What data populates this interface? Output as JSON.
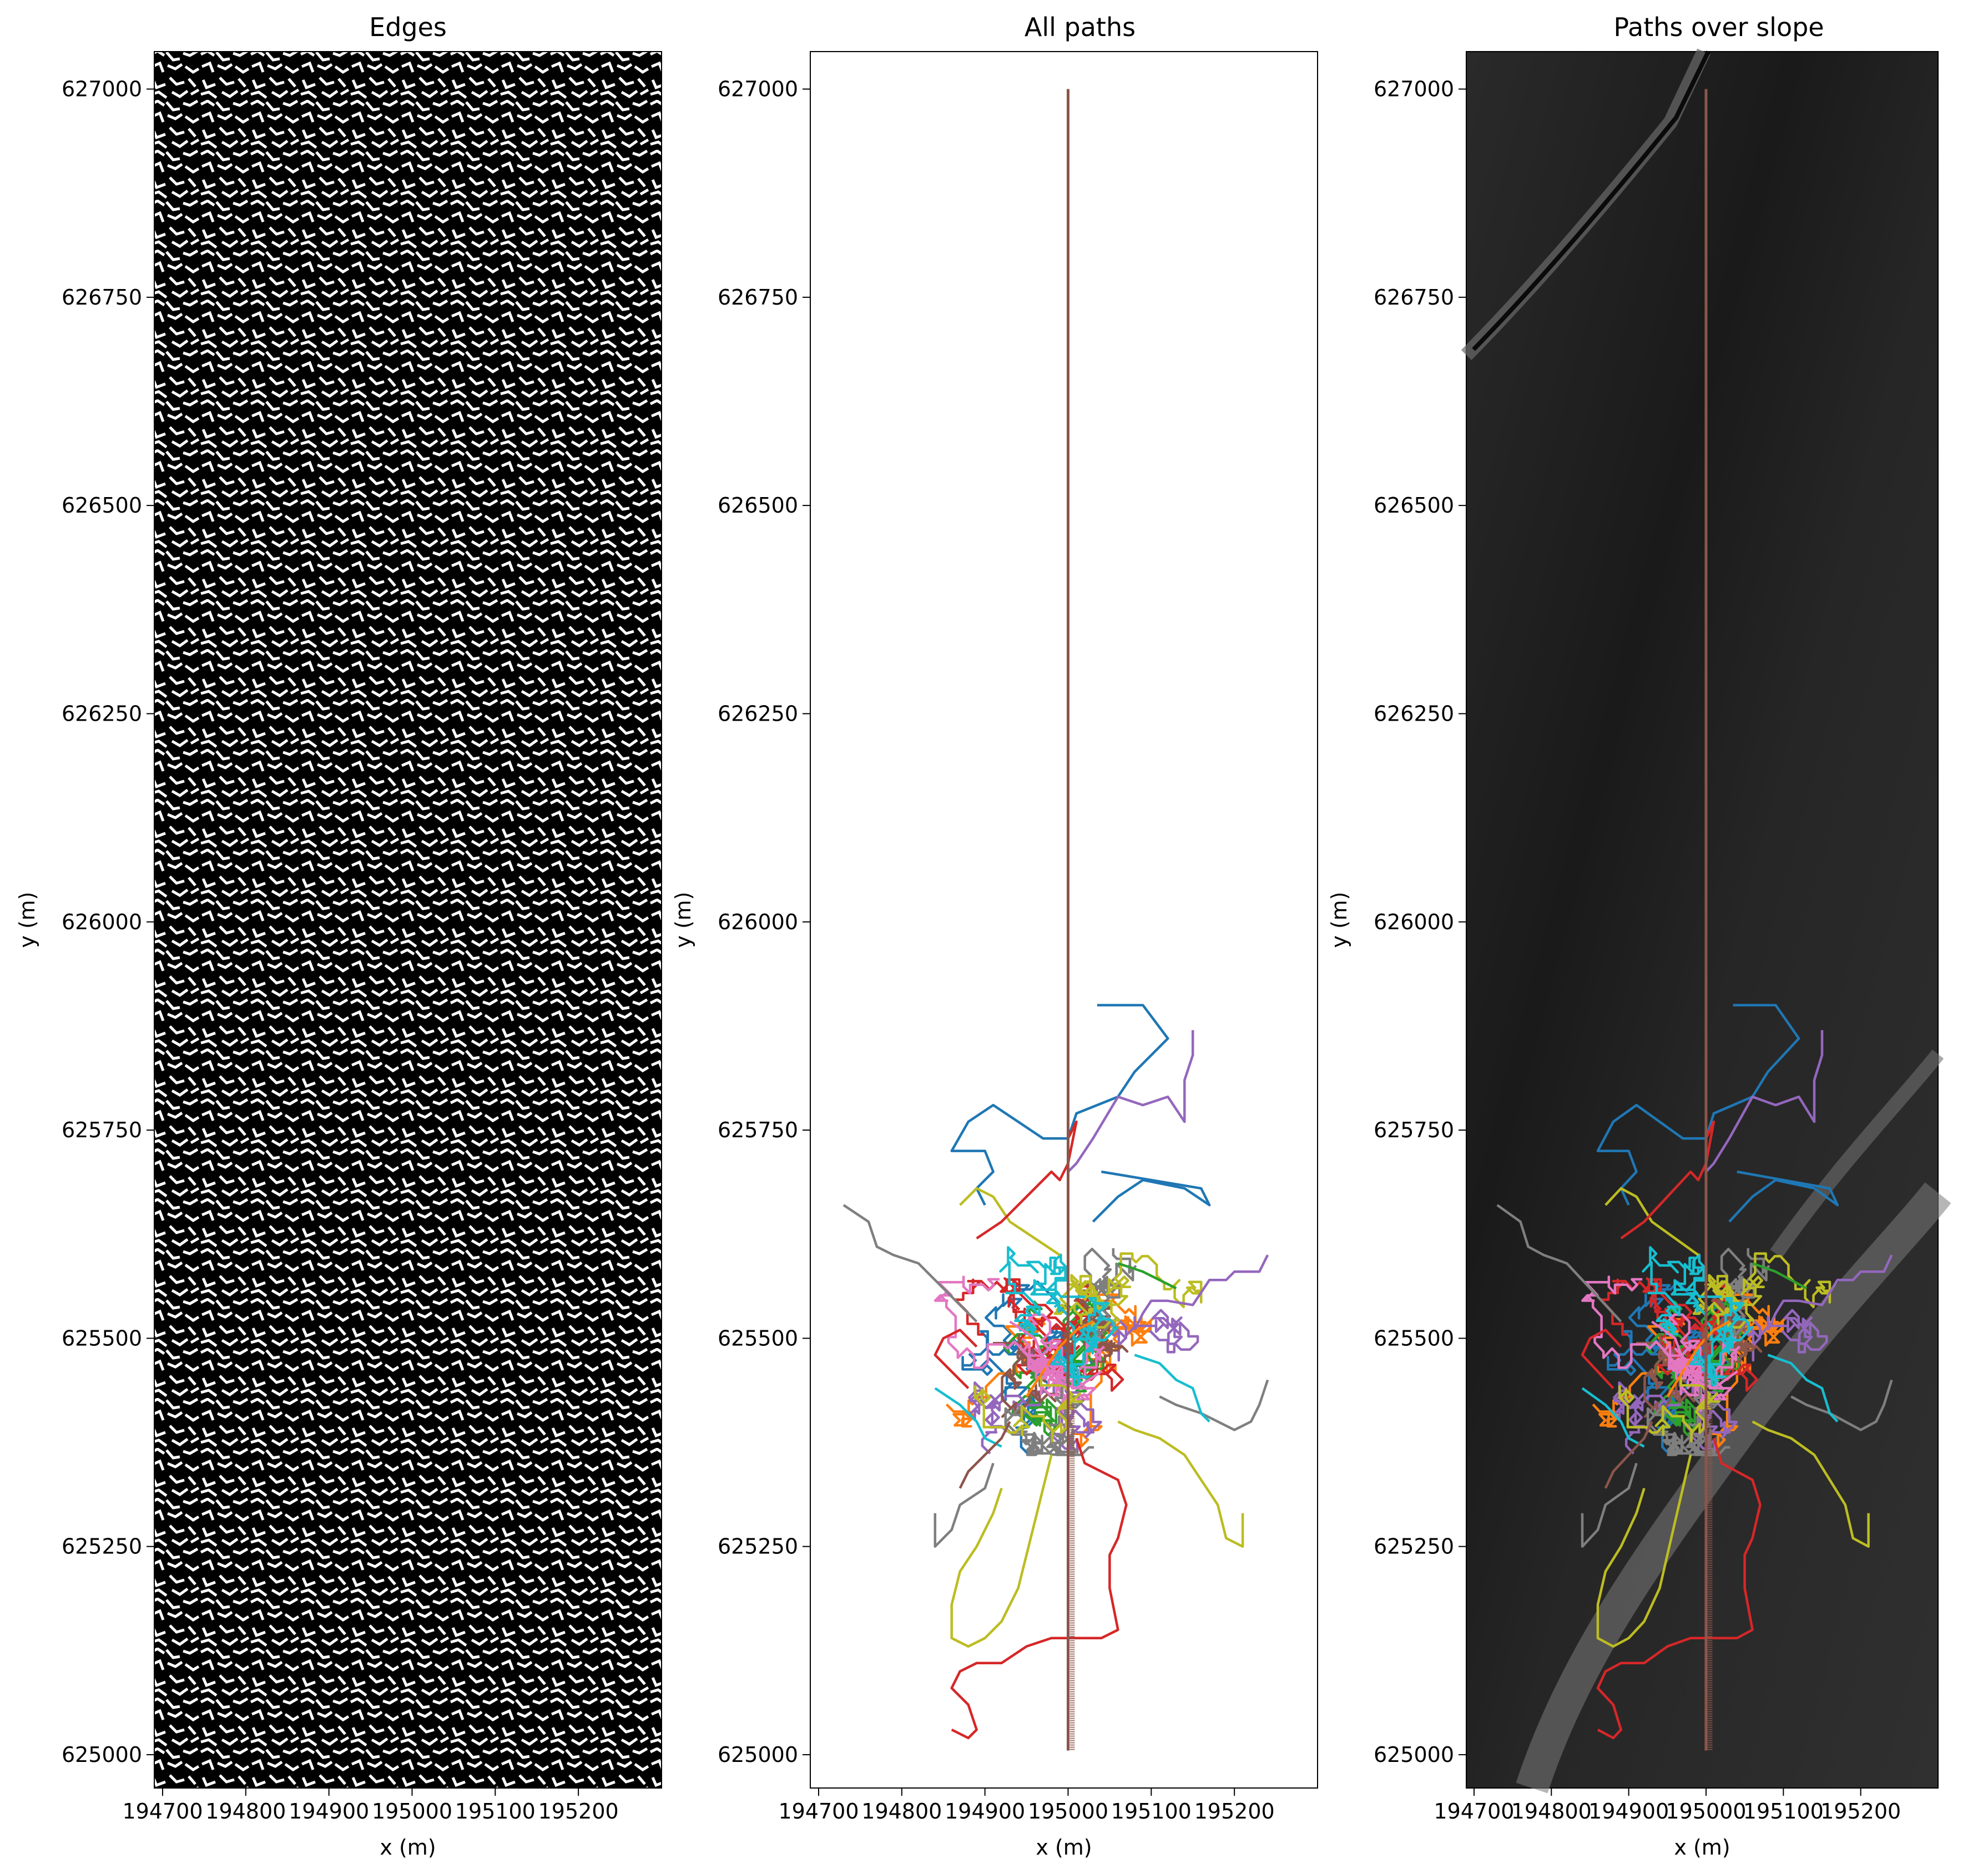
{
  "chart_data": [
    {
      "type": "heatmap",
      "panel": "edges",
      "title": "Edges",
      "xlabel": "x (m)",
      "ylabel": "y (m)",
      "xlim": [
        194690,
        195300
      ],
      "ylim": [
        624960,
        627045
      ],
      "xticks": [
        194700,
        194800,
        194900,
        195000,
        195100,
        195200
      ],
      "yticks": [
        625000,
        625250,
        625500,
        625750,
        626000,
        626250,
        626500,
        626750,
        627000
      ],
      "colormap": "binary edge map (white edges on black)"
    },
    {
      "type": "line",
      "panel": "all-paths",
      "title": "All paths",
      "xlabel": "x (m)",
      "ylabel": "y (m)",
      "xlim": [
        194690,
        195300
      ],
      "ylim": [
        624960,
        627045
      ],
      "xticks": [
        194700,
        194800,
        194900,
        195000,
        195100,
        195200
      ],
      "yticks": [
        625000,
        625250,
        625500,
        625750,
        626000,
        626250,
        626500,
        626750,
        627000
      ],
      "series_colors": [
        "#1f77b4",
        "#ff7f0e",
        "#2ca02c",
        "#d62728",
        "#9467bd",
        "#8c564b",
        "#e377c2",
        "#7f7f7f",
        "#bcbd22",
        "#17becf"
      ],
      "cluster_center": [
        194990,
        625480
      ],
      "vertical_path": {
        "color": "#8c564b",
        "x": 195000,
        "y_start": 627000,
        "y_end": 625005
      },
      "paths": [
        {
          "color": "#1f77b4",
          "points": [
            [
              195035,
              625900
            ],
            [
              195090,
              625900
            ],
            [
              195120,
              625860
            ],
            [
              195080,
              625820
            ],
            [
              195060,
              625790
            ],
            [
              195010,
              625770
            ],
            [
              195000,
              625740
            ],
            [
              194990,
              625740
            ],
            [
              194970,
              625740
            ],
            [
              194910,
              625780
            ],
            [
              194880,
              625760
            ],
            [
              194860,
              625725
            ],
            [
              194900,
              625725
            ],
            [
              194910,
              625700
            ],
            [
              194890,
              625680
            ],
            [
              194900,
              625660
            ]
          ]
        },
        {
          "color": "#1f77b4",
          "points": [
            [
              195040,
              625700
            ],
            [
              195100,
              625690
            ],
            [
              195160,
              625680
            ],
            [
              195170,
              625660
            ],
            [
              195140,
              625680
            ],
            [
              195090,
              625690
            ],
            [
              195060,
              625670
            ],
            [
              195030,
              625640
            ]
          ]
        },
        {
          "color": "#9467bd",
          "points": [
            [
              195150,
              625870
            ],
            [
              195150,
              625840
            ],
            [
              195140,
              625810
            ],
            [
              195140,
              625760
            ],
            [
              195120,
              625790
            ],
            [
              195090,
              625780
            ],
            [
              195060,
              625790
            ],
            [
              195030,
              625740
            ],
            [
              195010,
              625710
            ],
            [
              195000,
              625700
            ]
          ]
        },
        {
          "color": "#9467bd",
          "points": [
            [
              195240,
              625600
            ],
            [
              195230,
              625580
            ],
            [
              195200,
              625580
            ],
            [
              195190,
              625570
            ],
            [
              195170,
              625570
            ],
            [
              195150,
              625540
            ],
            [
              195120,
              625545
            ],
            [
              195100,
              625545
            ],
            [
              195090,
              625530
            ],
            [
              195080,
              625510
            ]
          ]
        },
        {
          "color": "#7f7f7f",
          "points": [
            [
              194730,
              625660
            ],
            [
              194760,
              625640
            ],
            [
              194770,
              625610
            ],
            [
              194790,
              625600
            ],
            [
              194820,
              625590
            ],
            [
              194830,
              625580
            ],
            [
              194850,
              625560
            ],
            [
              194870,
              625540
            ],
            [
              194890,
              625520
            ]
          ]
        },
        {
          "color": "#7f7f7f",
          "points": [
            [
              195240,
              625450
            ],
            [
              195230,
              625420
            ],
            [
              195220,
              625400
            ],
            [
              195200,
              625390
            ],
            [
              195180,
              625400
            ],
            [
              195160,
              625410
            ],
            [
              195130,
              625420
            ],
            [
              195110,
              625430
            ]
          ]
        },
        {
          "color": "#7f7f7f",
          "points": [
            [
              194840,
              625290
            ],
            [
              194840,
              625250
            ],
            [
              194860,
              625270
            ],
            [
              194870,
              625300
            ],
            [
              194900,
              625320
            ],
            [
              194910,
              625350
            ]
          ]
        },
        {
          "color": "#bcbd22",
          "points": [
            [
              195210,
              625290
            ],
            [
              195210,
              625250
            ],
            [
              195190,
              625260
            ],
            [
              195180,
              625300
            ],
            [
              195160,
              625330
            ],
            [
              195140,
              625360
            ],
            [
              195110,
              625380
            ],
            [
              195080,
              625390
            ],
            [
              195060,
              625400
            ]
          ]
        },
        {
          "color": "#bcbd22",
          "points": [
            [
              194920,
              625320
            ],
            [
              194910,
              625290
            ],
            [
              194890,
              625250
            ],
            [
              194870,
              625220
            ],
            [
              194860,
              625180
            ],
            [
              194860,
              625140
            ],
            [
              194880,
              625130
            ],
            [
              194900,
              625140
            ],
            [
              194920,
              625160
            ],
            [
              194940,
              625200
            ],
            [
              194950,
              625240
            ],
            [
              194960,
              625280
            ],
            [
              194970,
              625320
            ],
            [
              194980,
              625360
            ]
          ]
        },
        {
          "color": "#bcbd22",
          "points": [
            [
              194870,
              625660
            ],
            [
              194890,
              625680
            ],
            [
              194910,
              625670
            ],
            [
              194930,
              625640
            ],
            [
              194960,
              625620
            ],
            [
              194990,
              625600
            ]
          ]
        },
        {
          "color": "#d62728",
          "points": [
            [
              195000,
              625740
            ],
            [
              195010,
              625760
            ],
            [
              195000,
              625710
            ],
            [
              194990,
              625690
            ],
            [
              194980,
              625700
            ],
            [
              194950,
              625670
            ],
            [
              194920,
              625640
            ],
            [
              194890,
              625620
            ]
          ]
        },
        {
          "color": "#d62728",
          "points": [
            [
              195010,
              625380
            ],
            [
              195020,
              625350
            ],
            [
              195060,
              625330
            ],
            [
              195070,
              625300
            ],
            [
              195060,
              625260
            ],
            [
              195050,
              625240
            ],
            [
              195050,
              625200
            ],
            [
              195060,
              625150
            ],
            [
              195040,
              625140
            ],
            [
              194980,
              625140
            ],
            [
              194950,
              625130
            ],
            [
              194920,
              625110
            ],
            [
              194890,
              625110
            ],
            [
              194870,
              625100
            ],
            [
              194860,
              625080
            ],
            [
              194880,
              625060
            ],
            [
              194890,
              625030
            ],
            [
              194880,
              625020
            ],
            [
              194860,
              625030
            ]
          ]
        },
        {
          "color": "#d62728",
          "points": [
            [
              194880,
              625440
            ],
            [
              194860,
              625460
            ],
            [
              194840,
              625480
            ],
            [
              194850,
              625500
            ],
            [
              194870,
              625510
            ],
            [
              194890,
              625490
            ]
          ]
        },
        {
          "color": "#17becf",
          "points": [
            [
              194840,
              625440
            ],
            [
              194870,
              625420
            ],
            [
              194890,
              625400
            ],
            [
              194900,
              625380
            ],
            [
              194920,
              625370
            ]
          ]
        },
        {
          "color": "#17becf",
          "points": [
            [
              195080,
              625480
            ],
            [
              195110,
              625470
            ],
            [
              195130,
              625450
            ],
            [
              195150,
              625440
            ],
            [
              195160,
              625410
            ],
            [
              195170,
              625400
            ]
          ]
        },
        {
          "color": "#8c564b",
          "points": [
            [
              194870,
              625320
            ],
            [
              194880,
              625340
            ],
            [
              194900,
              625360
            ],
            [
              194920,
              625380
            ],
            [
              194930,
              625400
            ]
          ]
        },
        {
          "color": "#ff7f0e",
          "points": [
            [
              194950,
              625430
            ],
            [
              194970,
              625460
            ],
            [
              194990,
              625490
            ],
            [
              195010,
              625510
            ],
            [
              195030,
              625520
            ]
          ]
        },
        {
          "color": "#2ca02c",
          "points": [
            [
              195060,
              625590
            ],
            [
              195090,
              625580
            ],
            [
              195110,
              625570
            ],
            [
              195130,
              625560
            ]
          ]
        },
        {
          "color": "#e377c2",
          "points": [
            [
              194930,
              625520
            ],
            [
              194960,
              625500
            ],
            [
              194980,
              625450
            ],
            [
              195010,
              625440
            ],
            [
              195040,
              625460
            ]
          ]
        }
      ]
    },
    {
      "type": "heatmap",
      "panel": "paths-over-slope",
      "title": "Paths over slope",
      "xlabel": "x (m)",
      "ylabel": "y (m)",
      "xlim": [
        194690,
        195300
      ],
      "ylim": [
        624960,
        627045
      ],
      "xticks": [
        194700,
        194800,
        194900,
        195000,
        195100,
        195200
      ],
      "yticks": [
        625000,
        625250,
        625500,
        625750,
        626000,
        626250,
        626500,
        626750,
        627000
      ],
      "colormap": "gray slope",
      "overlay": "same paths as All paths"
    }
  ]
}
